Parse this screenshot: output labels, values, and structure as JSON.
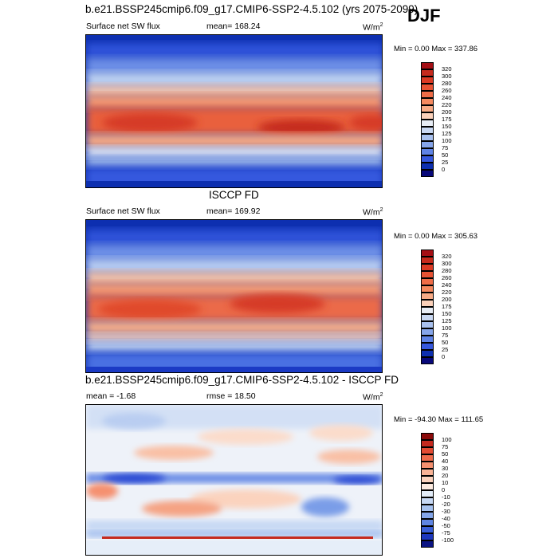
{
  "season": "DJF",
  "chart_data": [
    {
      "type": "heatmap",
      "title": "b.e21.BSSP245cmip6.f09_g17.CMIP6-SSP2-4.5.102 (yrs 2075-2099)",
      "variable": "Surface net SW flux",
      "mean_label": "mean= 168.24",
      "units": "W/m",
      "units_sup": "2",
      "minmax_label": "Min = 0.00 Max = 337.86",
      "min": 0.0,
      "max": 337.86,
      "levels": [
        "320",
        "300",
        "280",
        "260",
        "240",
        "220",
        "200",
        "175",
        "150",
        "125",
        "100",
        "75",
        "50",
        "25",
        "0"
      ],
      "colors": [
        "#a50f15",
        "#c62a1d",
        "#db3a24",
        "#e85334",
        "#ef6c47",
        "#f5895f",
        "#f8ab86",
        "#fbd1ba",
        "#e8edf5",
        "#c9d8f2",
        "#a9c1ee",
        "#86a5ea",
        "#5f83e6",
        "#3658de",
        "#0d2fb0",
        "#08087a"
      ]
    },
    {
      "type": "heatmap",
      "title": "ISCCP FD",
      "variable": "Surface net SW flux",
      "mean_label": "mean= 169.92",
      "units": "W/m",
      "units_sup": "2",
      "minmax_label": "Min = 0.00 Max = 305.63",
      "min": 0.0,
      "max": 305.63,
      "levels": [
        "320",
        "300",
        "280",
        "260",
        "240",
        "220",
        "200",
        "175",
        "150",
        "125",
        "100",
        "75",
        "50",
        "25",
        "0"
      ],
      "colors": [
        "#a50f15",
        "#c62a1d",
        "#db3a24",
        "#e85334",
        "#ef6c47",
        "#f5895f",
        "#f8ab86",
        "#fbd1ba",
        "#e8edf5",
        "#c9d8f2",
        "#a9c1ee",
        "#86a5ea",
        "#5f83e6",
        "#3658de",
        "#0d2fb0",
        "#08087a"
      ]
    },
    {
      "type": "heatmap",
      "title": "b.e21.BSSP245cmip6.f09_g17.CMIP6-SSP2-4.5.102 - ISCCP FD",
      "mean_label": "mean = -1.68",
      "rmse_label": "rmse = 18.50",
      "units": "W/m",
      "units_sup": "2",
      "minmax_label": "Min = -94.30 Max = 111.65",
      "min": -94.3,
      "max": 111.65,
      "levels": [
        "100",
        "75",
        "50",
        "40",
        "30",
        "20",
        "10",
        "0",
        "-10",
        "-20",
        "-30",
        "-40",
        "-50",
        "-75",
        "-100"
      ],
      "colors": [
        "#8b0a0a",
        "#c52a1f",
        "#e34b33",
        "#ef6b4c",
        "#f5906f",
        "#f9b396",
        "#fcd3be",
        "#fdebe0",
        "#e2ecf8",
        "#c6d8f4",
        "#a6c2ef",
        "#84a6ea",
        "#5f85e3",
        "#3a5fd8",
        "#1d37bd",
        "#0b1484"
      ]
    }
  ]
}
